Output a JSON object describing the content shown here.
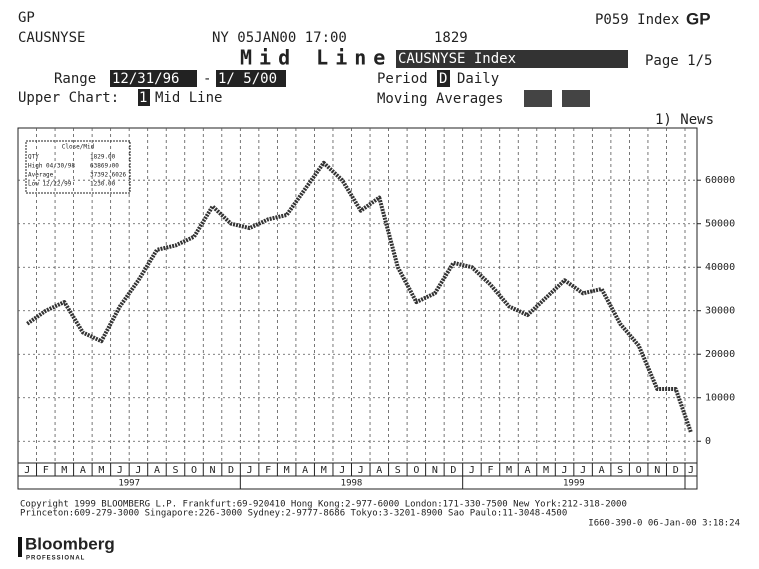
{
  "header": {
    "ticker_short": "GP",
    "ticker": "CAUSNYSE",
    "datetime": "NY 05JAN00 17:00",
    "last": "1829",
    "page_code": "P059 Index",
    "function": "GP",
    "title": "Mid Line",
    "security": "CAUSNYSE Index",
    "page": "Page 1/5",
    "range_label": "Range",
    "range_start": "12/31/96",
    "range_sep": "-",
    "range_end": "1/ 5/00",
    "period_label": "Period",
    "period_code": "D",
    "period": "Daily",
    "upper_chart_label": "Upper Chart:",
    "upper_chart_code": "1",
    "upper_chart": "Mid Line",
    "moving_averages": "Moving Averages",
    "news": "1) News"
  },
  "chart_data": {
    "type": "line",
    "stats": {
      "title": "Close/Mid",
      "rows": [
        [
          "QTY",
          "1829.00"
        ],
        [
          "High 04/30/98",
          "63869.00"
        ],
        [
          "Average",
          "37392.6026"
        ],
        [
          "Low 12/22/99",
          "1230.00"
        ]
      ]
    },
    "categories": [
      "J",
      "F",
      "M",
      "A",
      "M",
      "J",
      "J",
      "A",
      "S",
      "O",
      "N",
      "D",
      "J",
      "F",
      "M",
      "A",
      "M",
      "J",
      "J",
      "A",
      "S",
      "O",
      "N",
      "D",
      "J",
      "F",
      "M",
      "A",
      "M",
      "J",
      "J",
      "A",
      "S",
      "O",
      "N",
      "D",
      "J"
    ],
    "year_labels": [
      "1997",
      "1998",
      "1999"
    ],
    "series": [
      {
        "name": "Mid Line",
        "color": "#333333",
        "values": [
          27000,
          30000,
          32000,
          25000,
          23000,
          31000,
          37000,
          44000,
          45000,
          47000,
          54000,
          50000,
          49000,
          51000,
          52000,
          58000,
          64000,
          60000,
          53000,
          56000,
          40000,
          32000,
          34000,
          41000,
          40000,
          36000,
          31000,
          29000,
          33000,
          37000,
          34000,
          35000,
          27000,
          22000,
          12000,
          12000,
          2000
        ]
      }
    ],
    "ylim": [
      -5000,
      72000
    ],
    "yticks": [
      0,
      10000,
      20000,
      30000,
      40000,
      50000,
      60000
    ],
    "grid": true
  },
  "footer": {
    "lines": [
      "Copyright 1999 BLOOMBERG L.P.   Frankfurt:69-920410  Hong Kong:2-977-6000  London:171-330-7500  New York:212-318-2000",
      "Princeton:609-279-3000     Singapore:226-3000     Sydney:2-9777-8686     Tokyo:3-3201-8900     Sao Paulo:11-3048-4500",
      "I660-390-0 06-Jan-00  3:18:24"
    ],
    "brand": "Bloomberg",
    "brand_sub": "PROFESSIONAL"
  }
}
